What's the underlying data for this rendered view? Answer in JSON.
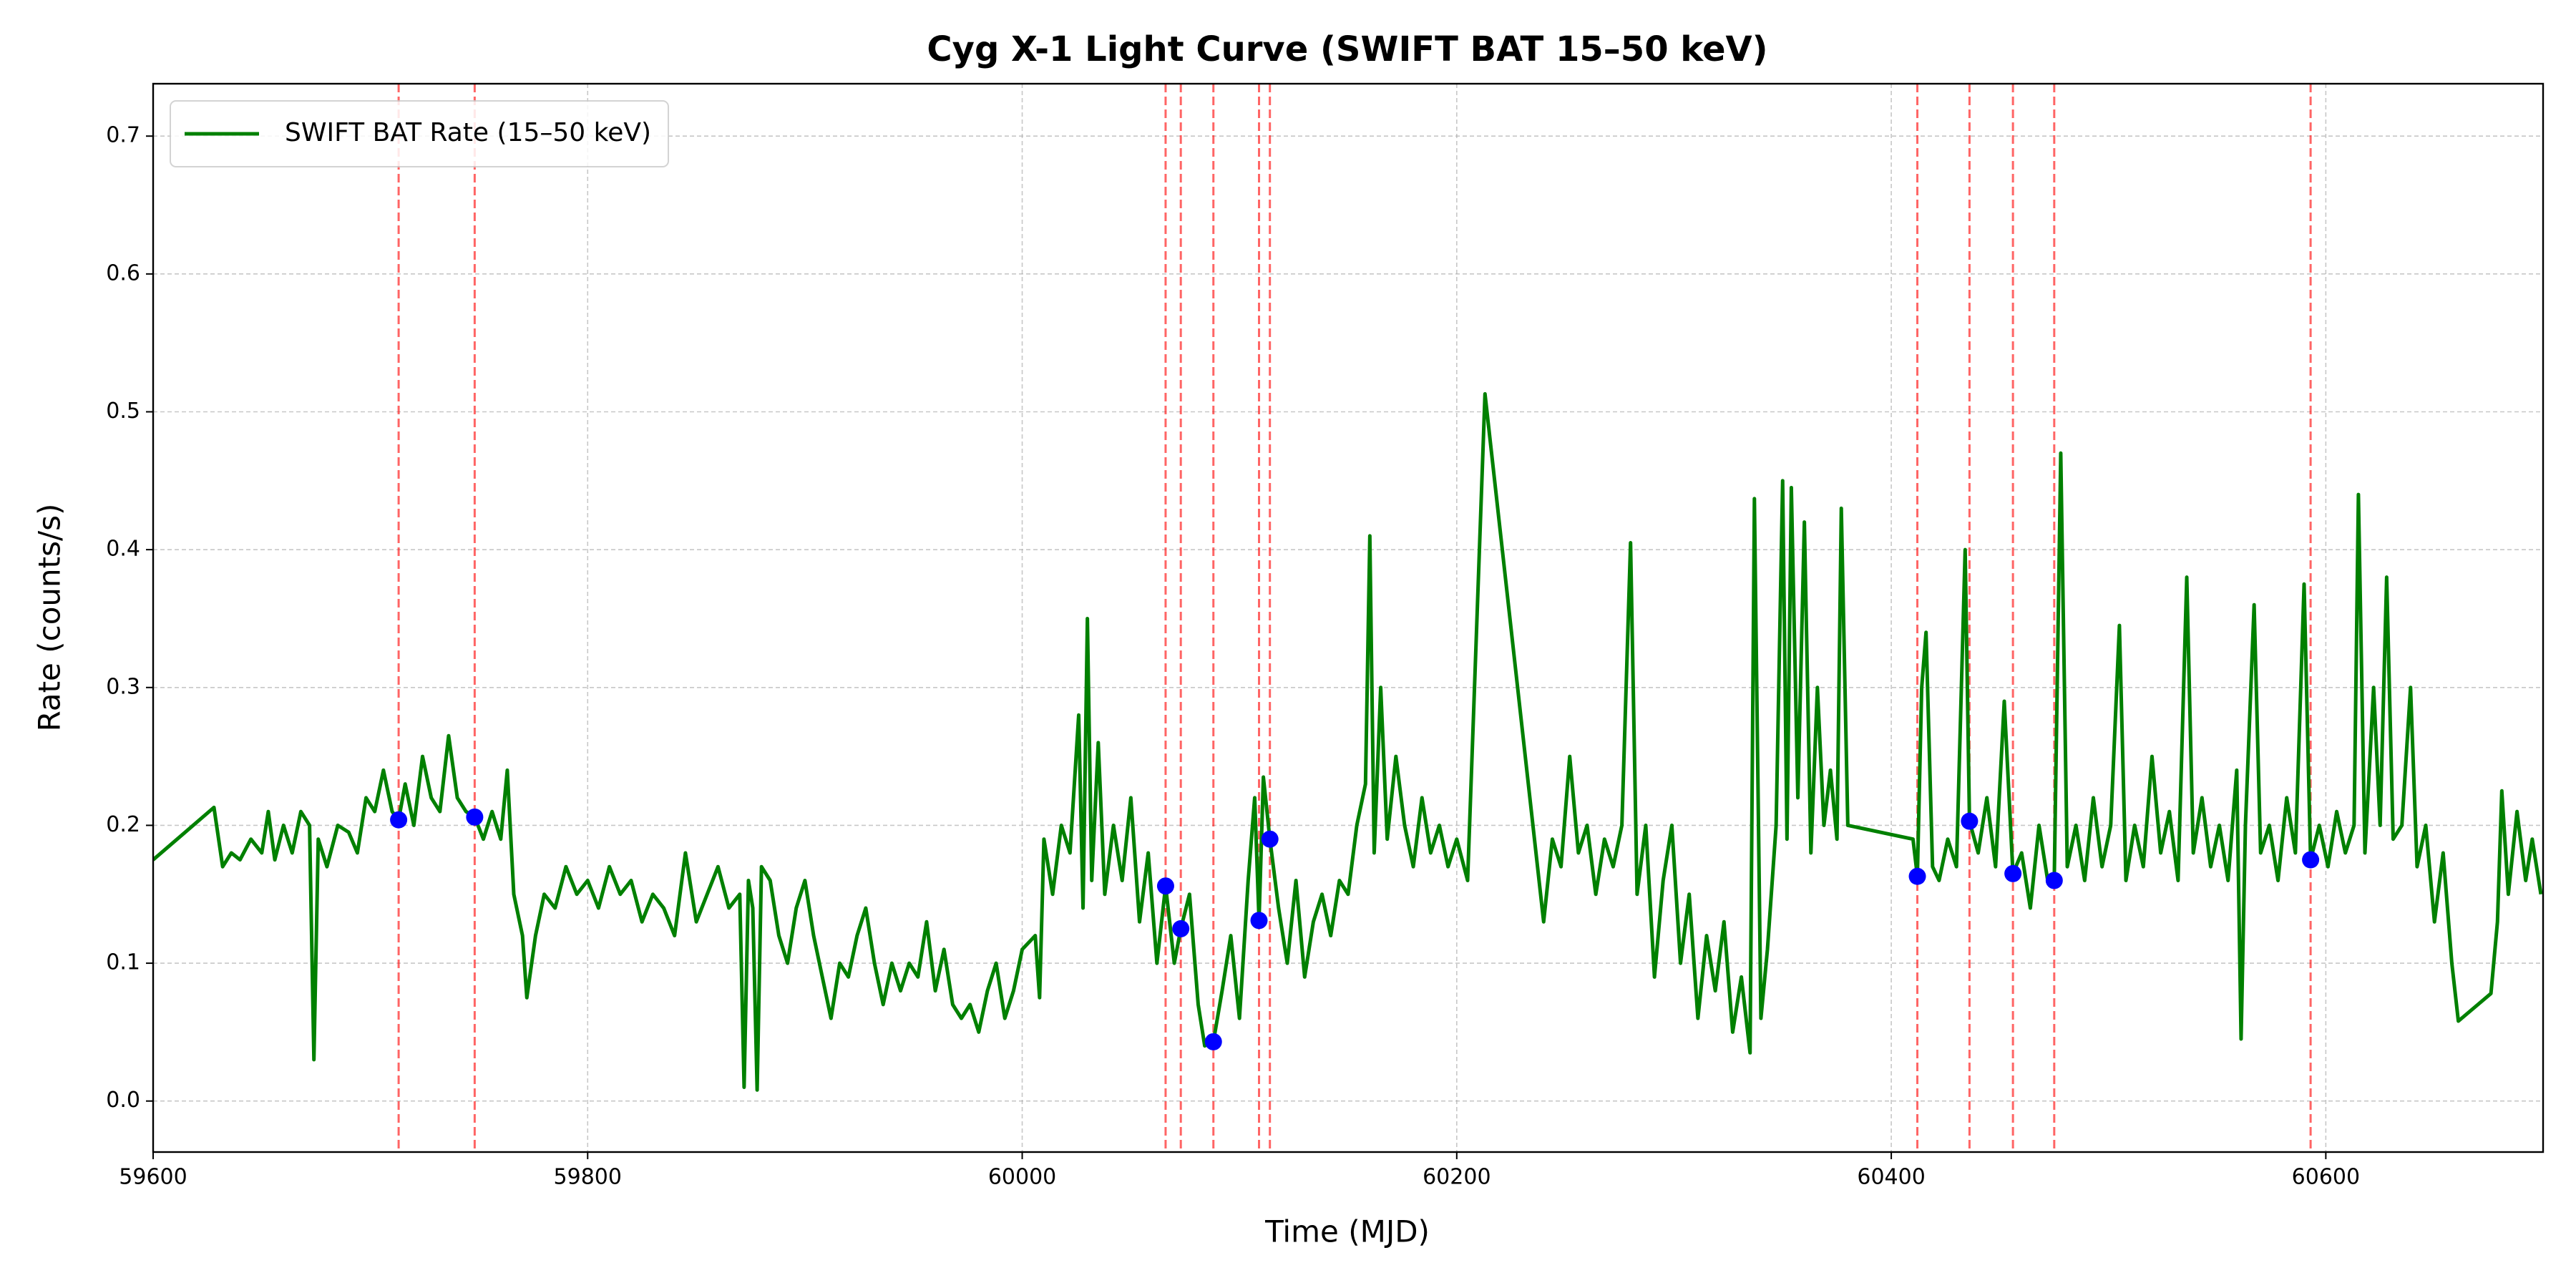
{
  "chart_data": {
    "type": "line",
    "title": "Cyg X-1 Light Curve (SWIFT BAT 15–50 keV)",
    "xlabel": "Time (MJD)",
    "ylabel": "Rate (counts/s)",
    "xlim": [
      59600,
      60700
    ],
    "ylim": [
      -0.037,
      0.738
    ],
    "xticks": [
      59600,
      59800,
      60000,
      60200,
      60400,
      60600
    ],
    "yticks": [
      {
        "value": 0,
        "label": "0.0"
      },
      0.1,
      0.2,
      0.3,
      0.4,
      0.5,
      0.6,
      0.7
    ],
    "grid": true,
    "legend": "upper left",
    "series": [
      {
        "name": "SWIFT BAT Rate (15–50 keV)",
        "color": "#008000",
        "mode": "line",
        "x": [
          59600,
          59628,
          59632,
          59636,
          59640,
          59645,
          59650,
          59653,
          59656,
          59660,
          59664,
          59668,
          59672,
          59674,
          59676,
          59680,
          59685,
          59690,
          59694,
          59698,
          59702,
          59706,
          59710,
          59713,
          59716,
          59720,
          59724,
          59728,
          59732,
          59736,
          59740,
          59744,
          59748,
          59752,
          59756,
          59760,
          59763,
          59766,
          59770,
          59772,
          59776,
          59780,
          59785,
          59790,
          59795,
          59800,
          59805,
          59810,
          59815,
          59820,
          59825,
          59830,
          59835,
          59840,
          59845,
          59850,
          59855,
          59860,
          59865,
          59870,
          59872,
          59874,
          59876,
          59878,
          59880,
          59884,
          59888,
          59892,
          59896,
          59900,
          59904,
          59908,
          59912,
          59916,
          59920,
          59924,
          59928,
          59932,
          59936,
          59940,
          59944,
          59948,
          59952,
          59956,
          59960,
          59964,
          59968,
          59972,
          59976,
          59980,
          59984,
          59988,
          59992,
          59996,
          60000,
          60006,
          60008,
          60010,
          60014,
          60018,
          60022,
          60026,
          60028,
          60030,
          60032,
          60035,
          60038,
          60042,
          60046,
          60050,
          60054,
          60058,
          60062,
          60066,
          60070,
          60073,
          60077,
          60081,
          60084,
          60088,
          60092,
          60096,
          60100,
          60104,
          60107,
          60109,
          60111,
          60114,
          60118,
          60122,
          60126,
          60130,
          60134,
          60138,
          60142,
          60146,
          60150,
          60154,
          60158,
          60160,
          60162,
          60165,
          60168,
          60172,
          60176,
          60180,
          60184,
          60188,
          60192,
          60196,
          60200,
          60205,
          60213,
          60240,
          60244,
          60248,
          60252,
          60256,
          60260,
          60264,
          60268,
          60272,
          60276,
          60280,
          60283,
          60287,
          60291,
          60295,
          60299,
          60303,
          60307,
          60311,
          60315,
          60319,
          60323,
          60327,
          60331,
          60335,
          60337,
          60340,
          60343,
          60347,
          60350,
          60352,
          60354,
          60357,
          60360,
          60363,
          60366,
          60369,
          60372,
          60375,
          60377,
          60380,
          60410,
          60412,
          60414,
          60416,
          60419,
          60422,
          60426,
          60430,
          60434,
          60436,
          60440,
          60444,
          60448,
          60452,
          60456,
          60460,
          60464,
          60468,
          60472,
          60475,
          60478,
          60481,
          60485,
          60489,
          60493,
          60497,
          60501,
          60505,
          60508,
          60512,
          60516,
          60520,
          60524,
          60528,
          60532,
          60536,
          60539,
          60543,
          60547,
          60551,
          60555,
          60559,
          60561,
          60563,
          60567,
          60570,
          60574,
          60578,
          60582,
          60586,
          60590,
          60593,
          60597,
          60601,
          60605,
          60609,
          60613,
          60615,
          60618,
          60622,
          60625,
          60628,
          60631,
          60635,
          60639,
          60642,
          60646,
          60650,
          60654,
          60658,
          60661,
          60676,
          60679,
          60681,
          60684,
          60688,
          60692,
          60695,
          60699
        ],
        "values": [
          0.175,
          0.213,
          0.17,
          0.18,
          0.175,
          0.19,
          0.18,
          0.21,
          0.175,
          0.2,
          0.18,
          0.21,
          0.2,
          0.03,
          0.19,
          0.17,
          0.2,
          0.195,
          0.18,
          0.22,
          0.21,
          0.24,
          0.21,
          0.204,
          0.23,
          0.2,
          0.25,
          0.22,
          0.21,
          0.265,
          0.22,
          0.21,
          0.206,
          0.19,
          0.21,
          0.19,
          0.24,
          0.15,
          0.12,
          0.075,
          0.12,
          0.15,
          0.14,
          0.17,
          0.15,
          0.16,
          0.14,
          0.17,
          0.15,
          0.16,
          0.13,
          0.15,
          0.14,
          0.12,
          0.18,
          0.13,
          0.15,
          0.17,
          0.14,
          0.15,
          0.01,
          0.16,
          0.14,
          0.008,
          0.17,
          0.16,
          0.12,
          0.1,
          0.14,
          0.16,
          0.12,
          0.09,
          0.06,
          0.1,
          0.09,
          0.12,
          0.14,
          0.1,
          0.07,
          0.1,
          0.08,
          0.1,
          0.09,
          0.13,
          0.08,
          0.11,
          0.07,
          0.06,
          0.07,
          0.05,
          0.08,
          0.1,
          0.06,
          0.08,
          0.11,
          0.12,
          0.075,
          0.19,
          0.15,
          0.2,
          0.18,
          0.28,
          0.14,
          0.35,
          0.16,
          0.26,
          0.15,
          0.2,
          0.16,
          0.22,
          0.13,
          0.18,
          0.1,
          0.156,
          0.1,
          0.125,
          0.15,
          0.07,
          0.04,
          0.043,
          0.08,
          0.12,
          0.06,
          0.16,
          0.22,
          0.131,
          0.235,
          0.19,
          0.14,
          0.1,
          0.16,
          0.09,
          0.13,
          0.15,
          0.12,
          0.16,
          0.15,
          0.2,
          0.23,
          0.41,
          0.18,
          0.3,
          0.19,
          0.25,
          0.2,
          0.17,
          0.22,
          0.18,
          0.2,
          0.17,
          0.19,
          0.16,
          0.513,
          0.13,
          0.19,
          0.17,
          0.25,
          0.18,
          0.2,
          0.15,
          0.19,
          0.17,
          0.2,
          0.405,
          0.15,
          0.2,
          0.09,
          0.16,
          0.2,
          0.1,
          0.15,
          0.06,
          0.12,
          0.08,
          0.13,
          0.05,
          0.09,
          0.035,
          0.437,
          0.06,
          0.11,
          0.2,
          0.45,
          0.19,
          0.445,
          0.22,
          0.42,
          0.18,
          0.3,
          0.2,
          0.24,
          0.19,
          0.43,
          0.2,
          0.19,
          0.163,
          0.3,
          0.34,
          0.17,
          0.16,
          0.19,
          0.17,
          0.4,
          0.203,
          0.18,
          0.22,
          0.17,
          0.29,
          0.165,
          0.18,
          0.14,
          0.2,
          0.16,
          0.16,
          0.47,
          0.17,
          0.2,
          0.16,
          0.22,
          0.17,
          0.2,
          0.345,
          0.16,
          0.2,
          0.17,
          0.25,
          0.18,
          0.21,
          0.16,
          0.38,
          0.18,
          0.22,
          0.17,
          0.2,
          0.16,
          0.24,
          0.045,
          0.2,
          0.36,
          0.18,
          0.2,
          0.16,
          0.22,
          0.18,
          0.375,
          0.175,
          0.2,
          0.17,
          0.21,
          0.18,
          0.2,
          0.44,
          0.18,
          0.3,
          0.2,
          0.38,
          0.19,
          0.2,
          0.3,
          0.17,
          0.2,
          0.13,
          0.18,
          0.1,
          0.058,
          0.078,
          0.13,
          0.225,
          0.15,
          0.21,
          0.16,
          0.19,
          0.15
        ]
      },
      {
        "color": "#0000ff",
        "mode": "markers",
        "x": [
          59713,
          59748,
          60066,
          60073,
          60088,
          60109,
          60114,
          60412,
          60436,
          60456,
          60475,
          60593
        ],
        "values": [
          0.204,
          0.206,
          0.156,
          0.125,
          0.043,
          0.131,
          0.19,
          0.163,
          0.203,
          0.165,
          0.16,
          0.175
        ]
      }
    ],
    "vlines": {
      "color": "#ff0000",
      "x": [
        59713,
        59748,
        60066,
        60073,
        60088,
        60109,
        60114,
        60412,
        60436,
        60456,
        60475,
        60593
      ]
    }
  }
}
